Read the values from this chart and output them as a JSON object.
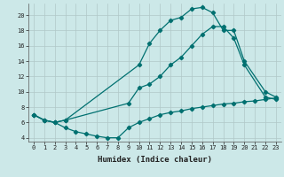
{
  "xlabel": "Humidex (Indice chaleur)",
  "bg_color": "#cce8e8",
  "grid_color": "#b0c8c8",
  "line_color": "#007070",
  "xlim": [
    -0.5,
    23.5
  ],
  "ylim": [
    3.5,
    21.5
  ],
  "yticks": [
    4,
    6,
    8,
    10,
    12,
    14,
    16,
    18,
    20
  ],
  "xticks": [
    0,
    1,
    2,
    3,
    4,
    5,
    6,
    7,
    8,
    9,
    10,
    11,
    12,
    13,
    14,
    15,
    16,
    17,
    18,
    19,
    20,
    21,
    22,
    23
  ],
  "curve1_x": [
    0,
    1,
    2,
    3,
    10,
    11,
    12,
    13,
    14,
    15,
    16,
    17,
    18,
    19,
    20,
    22,
    23
  ],
  "curve1_y": [
    7.0,
    6.3,
    6.0,
    6.3,
    13.5,
    16.3,
    18.0,
    19.3,
    19.7,
    20.8,
    21.0,
    20.3,
    18.0,
    18.0,
    14.0,
    10.0,
    9.3
  ],
  "curve2_x": [
    0,
    1,
    2,
    3,
    9,
    10,
    11,
    12,
    13,
    14,
    15,
    16,
    17,
    18,
    19,
    20,
    22,
    23
  ],
  "curve2_y": [
    7.0,
    6.3,
    6.0,
    6.3,
    8.5,
    10.5,
    11.0,
    12.0,
    13.5,
    14.5,
    16.0,
    17.5,
    18.5,
    18.5,
    17.0,
    13.5,
    9.3,
    9.0
  ],
  "curve3_x": [
    0,
    1,
    2,
    3,
    4,
    5,
    6,
    7,
    8,
    9,
    10,
    11,
    12,
    13,
    14,
    15,
    16,
    17,
    18,
    19,
    20,
    21,
    22,
    23
  ],
  "curve3_y": [
    7.0,
    6.3,
    6.0,
    5.3,
    4.8,
    4.5,
    4.2,
    4.0,
    4.0,
    5.3,
    6.0,
    6.5,
    7.0,
    7.3,
    7.5,
    7.8,
    8.0,
    8.2,
    8.4,
    8.5,
    8.7,
    8.8,
    9.0,
    9.2
  ],
  "xlabel_fontsize": 6.5,
  "tick_fontsize": 5.0
}
